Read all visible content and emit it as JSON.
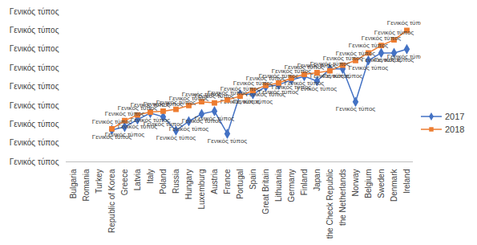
{
  "chart_data": {
    "type": "line",
    "categories": [
      "Bulgaria",
      "Romania",
      "Turkey",
      "Republic of Korea",
      "Greece",
      "Latvia",
      "Italy",
      "Poland",
      "Russia",
      "Hungary",
      "Luxemburg",
      "Austria",
      "France",
      "Portugal",
      "Spain",
      "Great Britain",
      "Lithuania",
      "Germany",
      "Finland",
      "Japan",
      "the Check Republic",
      "the Netherlands",
      "Norway",
      "Belgium",
      "Sweden",
      "Denmark",
      "Ireland"
    ],
    "series": [
      {
        "name": "2017",
        "color": "#4472c4",
        "marker": "diamond",
        "values": [
          null,
          null,
          null,
          17,
          18.6,
          22.5,
          26,
          24,
          16.7,
          21.6,
          25.5,
          27,
          15,
          36,
          36,
          40,
          41,
          43.6,
          45.6,
          43,
          49.5,
          49.5,
          32,
          54,
          58,
          58,
          60
        ],
        "value_labels": [
          null,
          null,
          null,
          "Γενικός τύπος",
          "Γενικός τύπος",
          "Γενικός τύπος",
          "Γενικός τύπος",
          "Γενικός τύπος",
          "Γενικός τύπος",
          "Γενικός τύπος",
          "Γενικός τύπος",
          "Γενικός τύπος",
          "Γενικός τύπος",
          "Γενικός τύπος",
          "Γενικός τύπος",
          "Γενικός τύπος",
          "Γενικός τύπος",
          "Γενικός τύπος",
          "Γενικός τύπος",
          "Γενικός τύπος",
          "Γενικός τύπος",
          "Γενικός τύπος",
          "Γενικός τύπος",
          "Γενικός τύπος",
          "Γενικός τύπος",
          "Γενικός τύπος",
          "Γενικός τύπος"
        ]
      },
      {
        "name": "2018",
        "color": "#ed7d31",
        "marker": "square",
        "values": [
          null,
          null,
          null,
          17.6,
          22,
          25,
          26.5,
          27,
          28,
          30,
          32,
          31.4,
          33,
          35,
          38,
          40.7,
          42,
          44.6,
          46.6,
          47.5,
          48.5,
          51.5,
          54,
          58,
          62,
          65,
          70
        ],
        "value_labels": [
          null,
          null,
          null,
          "Γενικός τύπος",
          "Γενικός τύπος",
          "Γενικός τύπος",
          "Γενικός τύπος",
          "Γενικός τύπος",
          "Γενικός τύπος",
          "Γενικός τύπος",
          "Γενικός τύπος",
          "Γενικός τύπος",
          "Γενικός τύπος",
          "Γενικός τύπος",
          "Γενικός τύπος",
          "Γενικός τύπος",
          "Γενικός τύπος",
          "Γενικός τύπος",
          "Γενικός τύπος",
          "Γενικός τύπος",
          "Γενικός τύπος",
          "Γενικός τύπος",
          "Γενικός τύπος",
          "Γενικός τύπος",
          "Γενικός τύπος",
          "Γενικός τύπος",
          "Γενικός τύπος"
        ]
      }
    ],
    "ylim": [
      0,
      80
    ],
    "yticks": [
      {
        "value": 0,
        "label": "Γενικός τύπος"
      },
      {
        "value": 10,
        "label": "Γενικός τύπος"
      },
      {
        "value": 20,
        "label": "Γενικός τύπος"
      },
      {
        "value": 30,
        "label": "Γενικός τύπος"
      },
      {
        "value": 40,
        "label": "Γενικός τύπος"
      },
      {
        "value": 50,
        "label": "Γενικός τύπος"
      },
      {
        "value": 60,
        "label": "Γενικός τύπος"
      },
      {
        "value": 70,
        "label": "Γενικός τύπος"
      },
      {
        "value": 80,
        "label": "Γενικός τύπος"
      }
    ],
    "grid": false,
    "legend": "right",
    "data_labels": true
  }
}
